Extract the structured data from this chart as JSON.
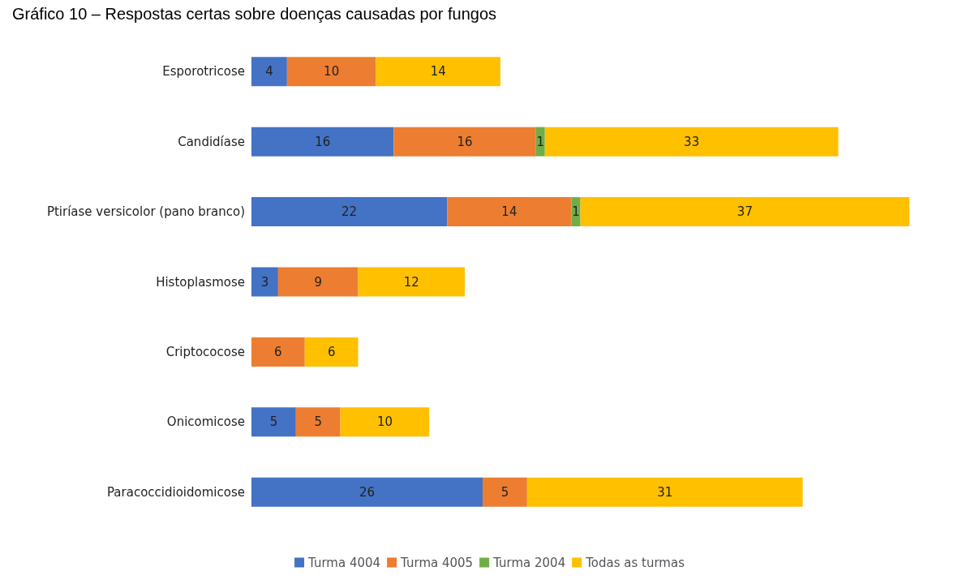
{
  "chart_data": {
    "type": "bar",
    "orientation": "horizontal",
    "stacked": true,
    "title": "Gráfico 10 – Respostas certas sobre doenças causadas por fungos",
    "categories": [
      "Esporotricose",
      "Candidíase",
      "Ptiríase versicolor (pano branco)",
      "Histoplasmose",
      "Criptococose",
      "Onicomicose",
      "Paracoccidioidomicose"
    ],
    "series": [
      {
        "name": "Turma 4004",
        "color": "#4472c4",
        "values": [
          4,
          16,
          22,
          3,
          null,
          5,
          26
        ]
      },
      {
        "name": "Turma 4005",
        "color": "#ed7d31",
        "values": [
          10,
          16,
          14,
          9,
          6,
          5,
          5
        ]
      },
      {
        "name": "Turma 2004",
        "color": "#70ad47",
        "values": [
          null,
          1,
          1,
          null,
          null,
          null,
          null
        ]
      },
      {
        "name": "Todas as turmas",
        "color": "#ffc000",
        "values": [
          14,
          33,
          37,
          12,
          6,
          10,
          31
        ]
      }
    ],
    "data_labels": true,
    "legend": "bottom",
    "tick_labels": "y"
  }
}
